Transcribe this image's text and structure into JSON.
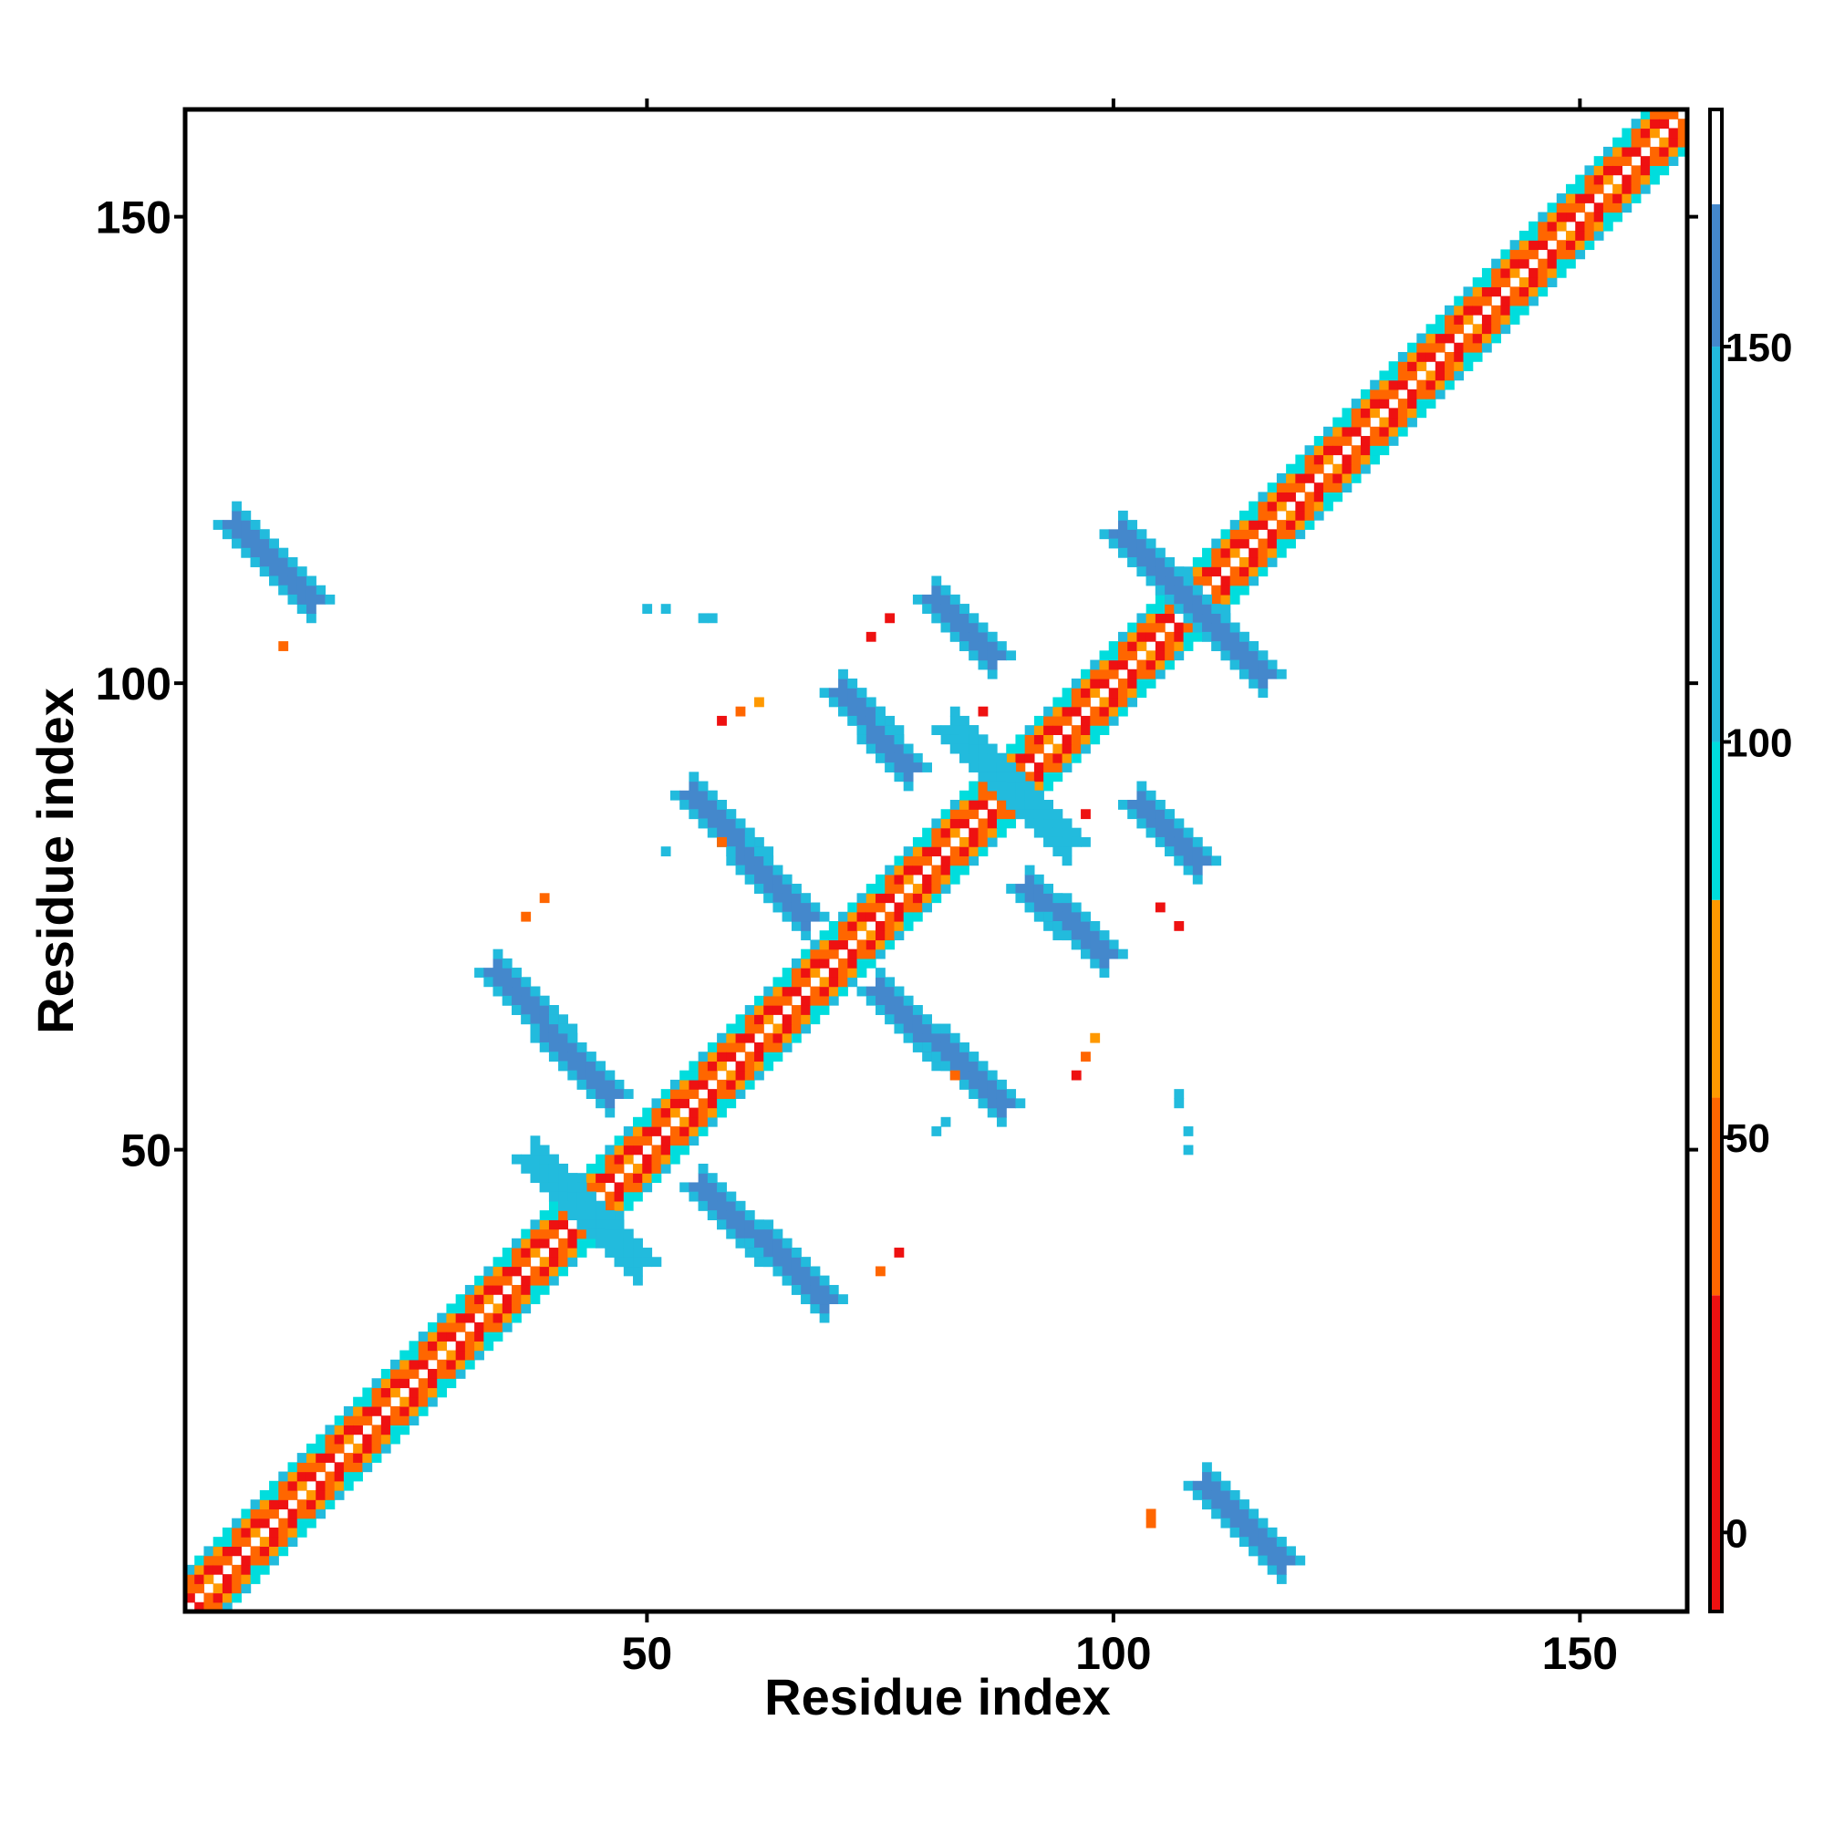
{
  "chart_data": {
    "type": "heatmap",
    "xlabel": "Residue index",
    "ylabel": "Residue index",
    "xlim": [
      1,
      161
    ],
    "ylim": [
      1,
      161
    ],
    "xticks": [
      50,
      100,
      150
    ],
    "yticks": [
      50,
      100,
      150
    ],
    "grid": false,
    "colorbar": {
      "placement": "right",
      "range": [
        -10,
        180
      ],
      "ticks": [
        0,
        50,
        100,
        150
      ],
      "bands": [
        {
          "from": -10,
          "to": 30,
          "color": "#ee1111"
        },
        {
          "from": 30,
          "to": 55,
          "color": "#ff6600"
        },
        {
          "from": 55,
          "to": 80,
          "color": "#ff9900"
        },
        {
          "from": 80,
          "to": 100,
          "color": "#00dddd"
        },
        {
          "from": 100,
          "to": 150,
          "color": "#22bbdd"
        },
        {
          "from": 150,
          "to": 168,
          "color": "#4488cc"
        },
        {
          "from": 168,
          "to": 180,
          "color": "#ffffff"
        }
      ]
    },
    "color_scale": {
      "red": "#ee1111",
      "orange": "#ff6600",
      "amber": "#ffa500",
      "cyan": "#00dddd",
      "sky": "#22bbdd",
      "steel": "#4a8cc8"
    },
    "regions": [
      {
        "x": [
          6,
          14
        ],
        "y": [
          109,
          117
        ],
        "value": 165
      },
      {
        "x": [
          110,
          118
        ],
        "y": [
          6,
          14
        ],
        "value": 165
      },
      {
        "x": [
          34,
          46
        ],
        "y": [
          56,
          69
        ],
        "value": 160
      },
      {
        "x": [
          56,
          69
        ],
        "y": [
          34,
          46
        ],
        "value": 160
      },
      {
        "x": [
          55,
          67
        ],
        "y": [
          75,
          88
        ],
        "value": 160
      },
      {
        "x": [
          75,
          88
        ],
        "y": [
          55,
          67
        ],
        "value": 160
      },
      {
        "x": [
          71,
          78
        ],
        "y": [
          91,
          99
        ],
        "value": 150
      },
      {
        "x": [
          91,
          99
        ],
        "y": [
          71,
          78
        ],
        "value": 150
      },
      {
        "x": [
          81,
          87
        ],
        "y": [
          103,
          109
        ],
        "value": 160
      },
      {
        "x": [
          103,
          109
        ],
        "y": [
          81,
          87
        ],
        "value": 160
      },
      {
        "x": [
          101,
          116
        ],
        "y": [
          101,
          116
        ],
        "value": 160
      },
      {
        "x": [
          83,
          95
        ],
        "y": [
          83,
          95
        ],
        "value": 140
      },
      {
        "x": [
          38,
          49
        ],
        "y": [
          38,
          49
        ],
        "value": 120
      }
    ],
    "scattered_cells": [
      {
        "x": 11,
        "y": 104,
        "value": 45
      },
      {
        "x": 104,
        "y": 11,
        "value": 45
      },
      {
        "x": 50,
        "y": 108,
        "value": 110
      },
      {
        "x": 52,
        "y": 108,
        "value": 110
      },
      {
        "x": 56,
        "y": 107,
        "value": 130
      },
      {
        "x": 57,
        "y": 107,
        "value": 130
      },
      {
        "x": 58,
        "y": 96,
        "value": 10
      },
      {
        "x": 60,
        "y": 97,
        "value": 45
      },
      {
        "x": 62,
        "y": 98,
        "value": 60
      },
      {
        "x": 76,
        "y": 107,
        "value": 10
      },
      {
        "x": 74,
        "y": 105,
        "value": 10
      },
      {
        "x": 86,
        "y": 97,
        "value": 10
      },
      {
        "x": 97,
        "y": 86,
        "value": 10
      },
      {
        "x": 105,
        "y": 76,
        "value": 10
      },
      {
        "x": 107,
        "y": 74,
        "value": 10
      },
      {
        "x": 96,
        "y": 58,
        "value": 10
      },
      {
        "x": 97,
        "y": 60,
        "value": 45
      },
      {
        "x": 98,
        "y": 62,
        "value": 60
      },
      {
        "x": 107,
        "y": 56,
        "value": 130
      },
      {
        "x": 107,
        "y": 55,
        "value": 130
      },
      {
        "x": 108,
        "y": 52,
        "value": 110
      },
      {
        "x": 108,
        "y": 50,
        "value": 100
      },
      {
        "x": 104,
        "y": 10,
        "value": 45
      },
      {
        "x": 37,
        "y": 75,
        "value": 45
      },
      {
        "x": 39,
        "y": 77,
        "value": 45
      },
      {
        "x": 75,
        "y": 37,
        "value": 45
      },
      {
        "x": 77,
        "y": 39,
        "value": 10
      },
      {
        "x": 58,
        "y": 83,
        "value": 45
      },
      {
        "x": 83,
        "y": 58,
        "value": 45
      },
      {
        "x": 52,
        "y": 82,
        "value": 120
      },
      {
        "x": 82,
        "y": 53,
        "value": 110
      },
      {
        "x": 81,
        "y": 52,
        "value": 110
      }
    ]
  }
}
